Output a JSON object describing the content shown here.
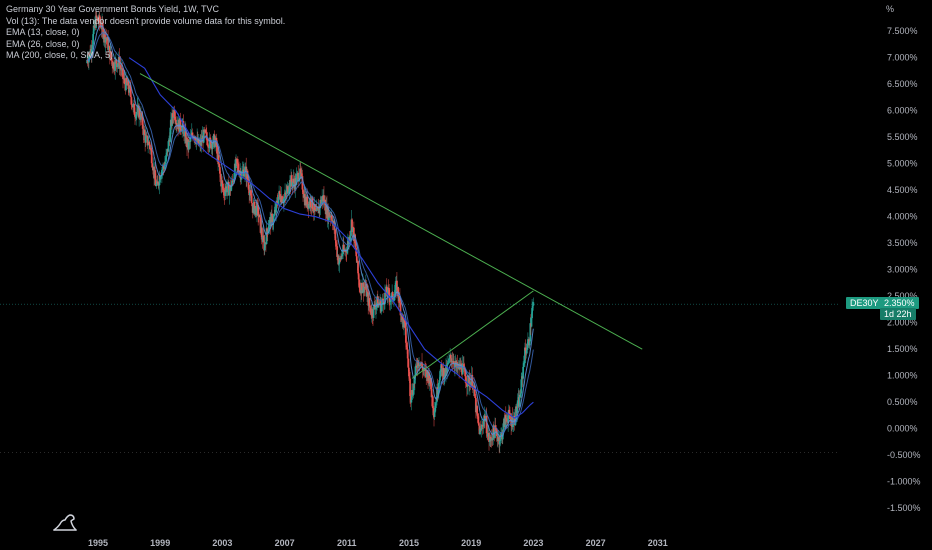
{
  "legend": {
    "title": "Germany 30 Year Government Bonds Yield, 1W, TVC",
    "vol": "Vol (13): The data vendor doesn't provide volume data for this symbol.",
    "ema13": "EMA (13, close, 0)",
    "ema26": "EMA (26, close, 0)",
    "ma200": "MA (200, close, 0, SMA, 5)"
  },
  "axis": {
    "percent_symbol": "%",
    "y_ticks": [
      "7.500%",
      "7.000%",
      "6.500%",
      "6.000%",
      "5.500%",
      "5.000%",
      "4.500%",
      "4.000%",
      "3.500%",
      "3.000%",
      "2.500%",
      "2.000%",
      "1.500%",
      "1.000%",
      "0.500%",
      "0.000%",
      "-0.500%",
      "-1.000%",
      "-1.500%"
    ],
    "x_ticks": [
      "1995",
      "1999",
      "2003",
      "2007",
      "2011",
      "2015",
      "2019",
      "2023",
      "2027",
      "2031"
    ]
  },
  "price_tag": {
    "symbol": "DE30Y",
    "price": "2.350%",
    "countdown": "1d 22h"
  },
  "colors": {
    "background": "#000000",
    "up": "#26a69a",
    "down": "#ef5350",
    "ema": "#5b8fd6",
    "ma200": "#2c3fd6",
    "trendline": "#4caf50",
    "tag": "#1d9a80"
  },
  "chart_data": {
    "type": "candlestick",
    "title": "Germany 30 Year Government Bonds Yield, 1W, TVC",
    "ylim": [
      -1.5,
      7.75
    ],
    "xlim": [
      1993.8,
      2032.5
    ],
    "current_value": 2.35,
    "price_path": [
      [
        1994.3,
        6.9
      ],
      [
        1994.8,
        7.6
      ],
      [
        1995.2,
        7.7
      ],
      [
        1995.7,
        7.1
      ],
      [
        1996.1,
        6.9
      ],
      [
        1996.5,
        6.8
      ],
      [
        1996.9,
        6.4
      ],
      [
        1997.3,
        6.1
      ],
      [
        1997.8,
        5.8
      ],
      [
        1998.3,
        5.3
      ],
      [
        1998.8,
        4.6
      ],
      [
        1999.2,
        4.9
      ],
      [
        1999.6,
        5.5
      ],
      [
        1999.9,
        6.0
      ],
      [
        2000.3,
        5.7
      ],
      [
        2000.8,
        5.4
      ],
      [
        2001.2,
        5.5
      ],
      [
        2001.6,
        5.4
      ],
      [
        2002.1,
        5.5
      ],
      [
        2002.6,
        5.3
      ],
      [
        2003.1,
        4.4
      ],
      [
        2003.5,
        4.6
      ],
      [
        2003.9,
        4.9
      ],
      [
        2004.4,
        4.9
      ],
      [
        2004.9,
        4.3
      ],
      [
        2005.3,
        4.0
      ],
      [
        2005.7,
        3.5
      ],
      [
        2006.1,
        3.9
      ],
      [
        2006.6,
        4.3
      ],
      [
        2007.2,
        4.5
      ],
      [
        2007.6,
        4.7
      ],
      [
        2007.9,
        4.8
      ],
      [
        2008.3,
        4.4
      ],
      [
        2008.7,
        4.2
      ],
      [
        2009.0,
        4.1
      ],
      [
        2009.5,
        4.3
      ],
      [
        2010.0,
        4.0
      ],
      [
        2010.5,
        3.2
      ],
      [
        2010.9,
        3.3
      ],
      [
        2011.3,
        3.9
      ],
      [
        2011.8,
        2.8
      ],
      [
        2012.3,
        2.5
      ],
      [
        2012.7,
        2.2
      ],
      [
        2013.1,
        2.4
      ],
      [
        2013.7,
        2.5
      ],
      [
        2014.2,
        2.6
      ],
      [
        2014.7,
        2.0
      ],
      [
        2015.1,
        0.6
      ],
      [
        2015.5,
        1.2
      ],
      [
        2015.9,
        1.2
      ],
      [
        2016.3,
        0.9
      ],
      [
        2016.6,
        0.4
      ],
      [
        2017.0,
        1.0
      ],
      [
        2017.5,
        1.2
      ],
      [
        2017.9,
        1.3
      ],
      [
        2018.3,
        1.1
      ],
      [
        2018.7,
        1.0
      ],
      [
        2019.1,
        0.8
      ],
      [
        2019.6,
        -0.1
      ],
      [
        2019.9,
        0.2
      ],
      [
        2020.2,
        -0.2
      ],
      [
        2020.6,
        -0.1
      ],
      [
        2021.0,
        -0.1
      ],
      [
        2021.4,
        0.3
      ],
      [
        2021.8,
        0.1
      ],
      [
        2022.1,
        0.6
      ],
      [
        2022.4,
        1.3
      ],
      [
        2022.7,
        1.6
      ],
      [
        2022.9,
        2.3
      ],
      [
        2023.0,
        2.35
      ]
    ],
    "ma200_path": [
      [
        1997.0,
        7.0
      ],
      [
        1998.0,
        6.8
      ],
      [
        1999.0,
        6.3
      ],
      [
        2000.0,
        6.0
      ],
      [
        2001.0,
        5.5
      ],
      [
        2002.0,
        5.2
      ],
      [
        2003.0,
        5.0
      ],
      [
        2004.0,
        4.8
      ],
      [
        2005.0,
        4.6
      ],
      [
        2006.0,
        4.35
      ],
      [
        2007.0,
        4.15
      ],
      [
        2008.0,
        4.05
      ],
      [
        2009.0,
        4.0
      ],
      [
        2010.0,
        3.9
      ],
      [
        2011.0,
        3.6
      ],
      [
        2012.0,
        3.2
      ],
      [
        2013.0,
        2.75
      ],
      [
        2014.0,
        2.4
      ],
      [
        2015.0,
        1.95
      ],
      [
        2016.0,
        1.5
      ],
      [
        2017.0,
        1.25
      ],
      [
        2018.0,
        1.05
      ],
      [
        2019.0,
        0.8
      ],
      [
        2020.0,
        0.6
      ],
      [
        2021.0,
        0.35
      ],
      [
        2021.8,
        0.2
      ],
      [
        2022.3,
        0.3
      ],
      [
        2022.8,
        0.45
      ],
      [
        2023.0,
        0.5
      ]
    ],
    "trendlines": [
      {
        "from": [
          1997.7,
          6.7
        ],
        "to": [
          2030.0,
          1.5
        ]
      },
      {
        "from": [
          2015.2,
          0.95
        ],
        "to": [
          2023.0,
          2.6
        ]
      }
    ]
  }
}
